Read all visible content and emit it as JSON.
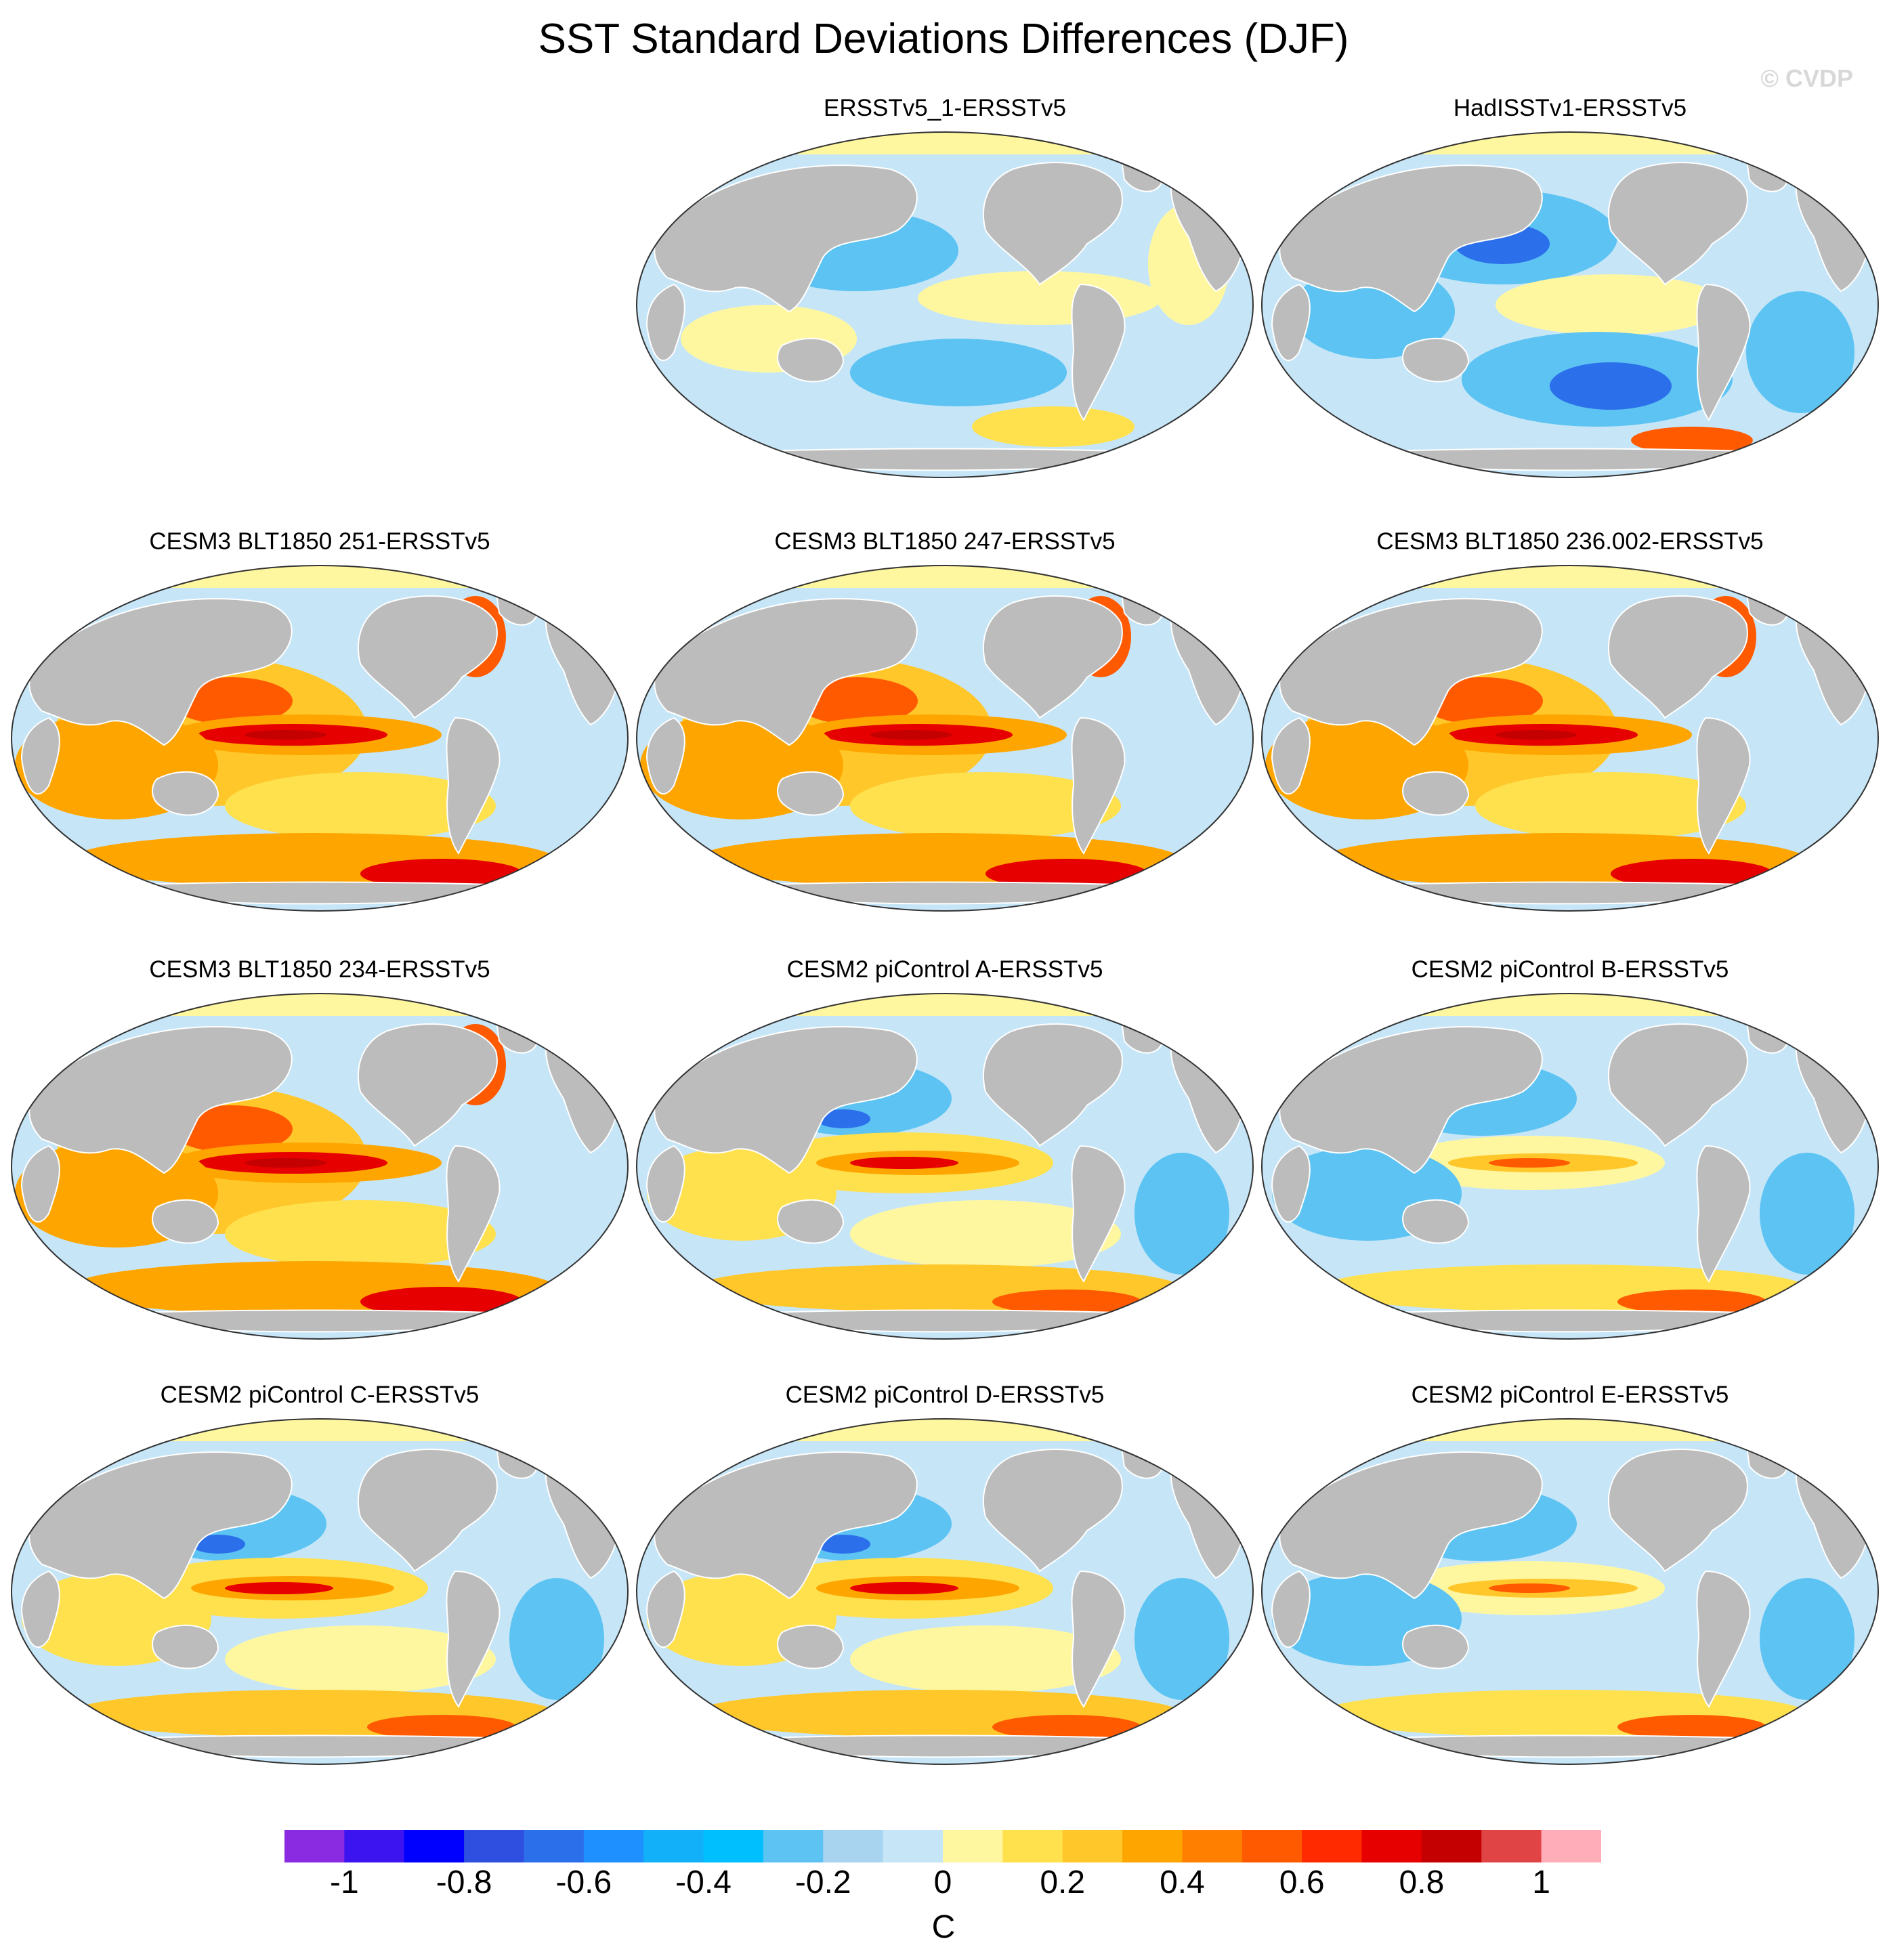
{
  "title": "SST Standard Deviations Differences (DJF)",
  "watermark": "© CVDP",
  "colorbar": {
    "unit": "C",
    "tick_labels": [
      "-1",
      "-0.8",
      "-0.6",
      "-0.4",
      "-0.2",
      "0",
      "0.2",
      "0.4",
      "0.6",
      "0.8",
      "1"
    ],
    "colors": [
      "#8a2be2",
      "#3b14f0",
      "#0000ff",
      "#2f4fe0",
      "#2c6fea",
      "#1e90ff",
      "#12b0f8",
      "#00bfff",
      "#5cc3f2",
      "#a8d4ef",
      "#c6e6f8",
      "#fff7a0",
      "#ffe04d",
      "#ffc72a",
      "#ffa500",
      "#ff8000",
      "#ff5a00",
      "#ff2a00",
      "#e60000",
      "#c40000",
      "#e04444",
      "#ffaeb9"
    ]
  },
  "colors": {
    "land": "#bcbcbc",
    "ocean_neutral": "#c6e6f8",
    "arctic_ice": "#fff7a0"
  },
  "panels": [
    {
      "title": "ERSSTv5_1-ERSSTv5",
      "pattern": "neutral"
    },
    {
      "title": "HadISSTv1-ERSSTv5",
      "pattern": "cool"
    },
    {
      "title": "CESM3 BLT1850 251-ERSSTv5",
      "pattern": "strong-warm"
    },
    {
      "title": "CESM3 BLT1850 247-ERSSTv5",
      "pattern": "strong-warm"
    },
    {
      "title": "CESM3 BLT1850 236.002-ERSSTv5",
      "pattern": "strong-warm"
    },
    {
      "title": "CESM3 BLT1850 234-ERSSTv5",
      "pattern": "strong-warm"
    },
    {
      "title": "CESM2 piControl A-ERSSTv5",
      "pattern": "moderate-warm"
    },
    {
      "title": "CESM2 piControl B-ERSSTv5",
      "pattern": "mixed"
    },
    {
      "title": "CESM2 piControl C-ERSSTv5",
      "pattern": "moderate-warm"
    },
    {
      "title": "CESM2 piControl D-ERSSTv5",
      "pattern": "moderate-warm"
    },
    {
      "title": "CESM2 piControl E-ERSSTv5",
      "pattern": "mixed"
    }
  ]
}
